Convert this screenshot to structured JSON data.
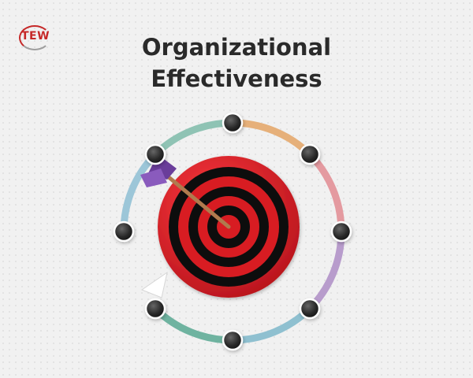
{
  "logo": {
    "text": "TEW"
  },
  "title": {
    "line1": "Organizational",
    "line2": "Effectiveness"
  },
  "colors": {
    "background": "#f1f1f1",
    "title": "#2a2a2a",
    "target_red": "#d81c22",
    "target_black": "#111111",
    "arrow_shaft": "#b07a4e",
    "arrow_fletch": "#6a3d9a",
    "ring_segments": [
      "#8fc3b4",
      "#e6b07a",
      "#e49aa0",
      "#b89ccc",
      "#6fb3a0",
      "#8fc0d0",
      "#9cc6d8"
    ],
    "node": "#333333"
  },
  "diagram": {
    "node_count": 8,
    "target_rings": 5
  }
}
